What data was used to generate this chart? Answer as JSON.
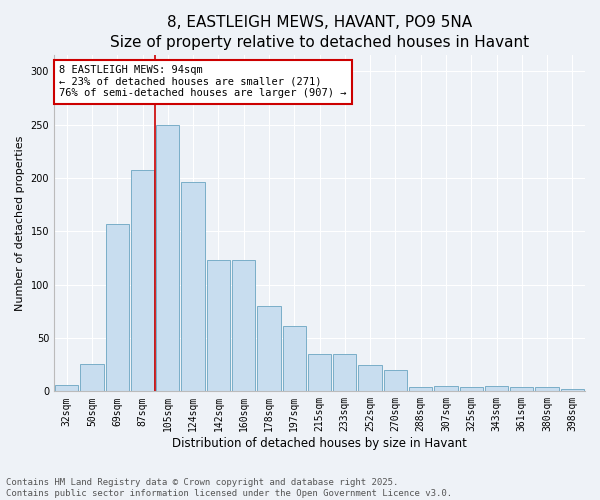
{
  "title": "8, EASTLEIGH MEWS, HAVANT, PO9 5NA",
  "subtitle": "Size of property relative to detached houses in Havant",
  "xlabel": "Distribution of detached houses by size in Havant",
  "ylabel": "Number of detached properties",
  "categories": [
    "32sqm",
    "50sqm",
    "69sqm",
    "87sqm",
    "105sqm",
    "124sqm",
    "142sqm",
    "160sqm",
    "178sqm",
    "197sqm",
    "215sqm",
    "233sqm",
    "252sqm",
    "270sqm",
    "288sqm",
    "307sqm",
    "325sqm",
    "343sqm",
    "361sqm",
    "380sqm",
    "398sqm"
  ],
  "values": [
    6,
    26,
    157,
    207,
    250,
    196,
    123,
    123,
    80,
    61,
    35,
    35,
    25,
    20,
    4,
    5,
    4,
    5,
    4,
    4,
    2
  ],
  "bar_color": "#c8ddef",
  "bar_edge_color": "#7aaec8",
  "vline_x_index": 3.5,
  "vline_color": "#cc0000",
  "annotation_text": "8 EASTLEIGH MEWS: 94sqm\n← 23% of detached houses are smaller (271)\n76% of semi-detached houses are larger (907) →",
  "annotation_box_color": "#ffffff",
  "annotation_box_edge": "#cc0000",
  "annotation_fontsize": 7.5,
  "ylim": [
    0,
    315
  ],
  "yticks": [
    0,
    50,
    100,
    150,
    200,
    250,
    300
  ],
  "background_color": "#eef2f7",
  "grid_color": "#ffffff",
  "footer_text": "Contains HM Land Registry data © Crown copyright and database right 2025.\nContains public sector information licensed under the Open Government Licence v3.0.",
  "title_fontsize": 11,
  "subtitle_fontsize": 9.5,
  "xlabel_fontsize": 8.5,
  "ylabel_fontsize": 8,
  "tick_fontsize": 7,
  "footer_fontsize": 6.5
}
